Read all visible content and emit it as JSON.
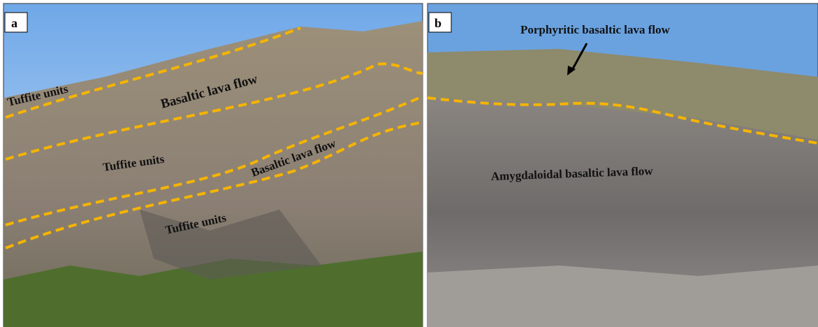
{
  "panels": [
    {
      "label": "a",
      "annotations": [
        "Tuffite units",
        "Basaltic lava flow",
        "Tuffite units",
        "Basaltic lava flow",
        "Tuffite units"
      ]
    },
    {
      "label": "b",
      "annotations": [
        "Porphyritic basaltic lava flow",
        "Amygdaloidal basaltic lava flow"
      ]
    }
  ]
}
